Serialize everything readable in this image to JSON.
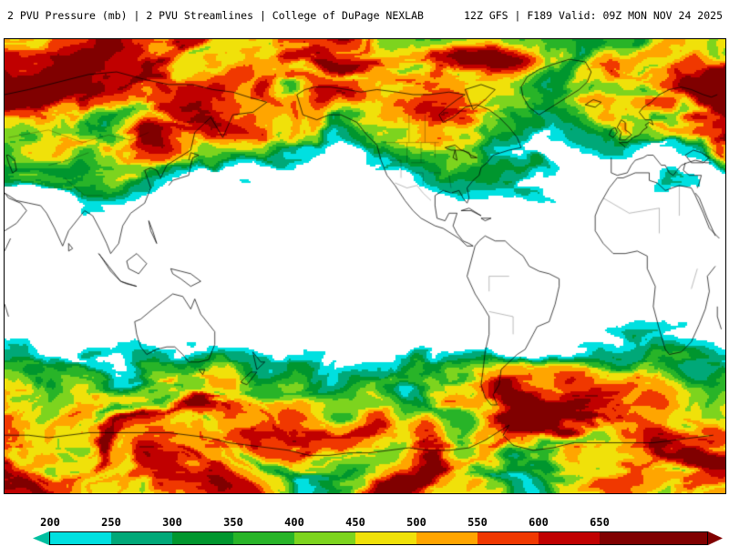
{
  "header": {
    "left_title": "2 PVU Pressure (mb) | 2 PVU Streamlines | College of DuPage NEXLAB",
    "right_title": "12Z GFS | F189 Valid: 09Z MON NOV 24 2025"
  },
  "map": {
    "coastline_color": "#000000",
    "below_scale_color": "#FFFFFF"
  },
  "colorbar": {
    "unit_labels": [
      "200",
      "250",
      "300",
      "350",
      "400",
      "450",
      "500",
      "550",
      "600",
      "650"
    ],
    "segments": [
      {
        "label": "<200",
        "color": "#00BFA0"
      },
      {
        "label": "200-250",
        "color": "#00E0E0"
      },
      {
        "label": "250-300",
        "color": "#00A878"
      },
      {
        "label": "300-350",
        "color": "#00962E"
      },
      {
        "label": "350-400",
        "color": "#28B428"
      },
      {
        "label": "400-450",
        "color": "#7DD41E"
      },
      {
        "label": "450-500",
        "color": "#F0E10A"
      },
      {
        "label": "500-550",
        "color": "#FFA500"
      },
      {
        "label": "550-600",
        "color": "#F03800"
      },
      {
        "label": "600-650",
        "color": "#C00000"
      },
      {
        "label": ">650",
        "color": "#800000"
      }
    ]
  }
}
